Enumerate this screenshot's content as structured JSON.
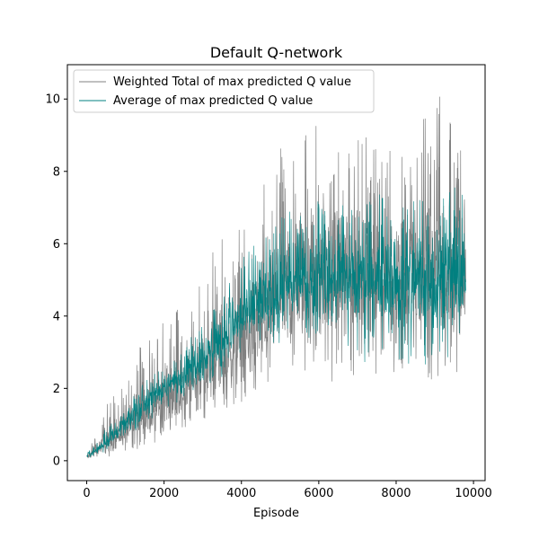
{
  "chart_data": {
    "type": "line",
    "title": "Default Q-network",
    "xlabel": "Episode",
    "ylabel": "",
    "xlim": [
      -500,
      10300
    ],
    "ylim": [
      -0.55,
      10.95
    ],
    "xticks": [
      0,
      2000,
      4000,
      6000,
      8000,
      10000
    ],
    "xtick_labels": [
      "0",
      "2000",
      "4000",
      "6000",
      "8000",
      "10000"
    ],
    "yticks": [
      0,
      2,
      4,
      6,
      8,
      10
    ],
    "ytick_labels": [
      "0",
      "2",
      "4",
      "6",
      "8",
      "10"
    ],
    "grid": false,
    "legend_position": "top-left",
    "x": [
      0,
      500,
      1000,
      1500,
      2000,
      2500,
      3000,
      3500,
      4000,
      4500,
      5000,
      5500,
      6000,
      6500,
      7000,
      7500,
      8000,
      8500,
      9000,
      9500,
      9800
    ],
    "series": [
      {
        "name": "Weighted Total of max predicted Q value",
        "color": "#808080",
        "mean": [
          0.1,
          0.45,
          0.8,
          1.2,
          1.6,
          2.0,
          2.4,
          2.8,
          3.3,
          3.8,
          4.3,
          4.7,
          4.9,
          5.0,
          5.0,
          5.0,
          5.0,
          5.0,
          5.0,
          5.0,
          5.0
        ],
        "max": [
          0.2,
          1.5,
          2.6,
          3.4,
          3.9,
          4.6,
          5.2,
          6.3,
          7.2,
          7.6,
          9.1,
          9.2,
          9.4,
          9.0,
          9.1,
          9.2,
          9.0,
          9.2,
          10.4,
          9.1,
          8.3
        ],
        "min": [
          0.05,
          0.1,
          0.2,
          0.3,
          0.55,
          0.7,
          1.0,
          1.3,
          1.6,
          2.0,
          2.2,
          2.5,
          2.3,
          2.1,
          2.4,
          2.1,
          2.0,
          2.3,
          2.2,
          2.4,
          2.5
        ]
      },
      {
        "name": "Average of max predicted Q value",
        "color": "#008080",
        "mean": [
          0.1,
          0.5,
          1.0,
          1.6,
          2.0,
          2.4,
          2.9,
          3.4,
          3.9,
          4.3,
          4.6,
          4.9,
          5.0,
          5.0,
          5.0,
          5.0,
          5.0,
          5.0,
          5.0,
          5.0,
          5.0
        ],
        "max": [
          0.2,
          0.9,
          1.5,
          2.2,
          2.6,
          3.2,
          3.8,
          4.6,
          5.6,
          6.3,
          6.8,
          7.0,
          7.2,
          7.0,
          7.3,
          7.4,
          7.2,
          7.3,
          7.9,
          7.6,
          7.5
        ],
        "min": [
          0.05,
          0.25,
          0.6,
          1.0,
          1.4,
          1.7,
          2.0,
          2.3,
          2.7,
          3.0,
          3.2,
          3.4,
          3.3,
          3.0,
          2.6,
          2.6,
          2.7,
          2.6,
          2.7,
          2.7,
          3.1
        ]
      }
    ]
  }
}
